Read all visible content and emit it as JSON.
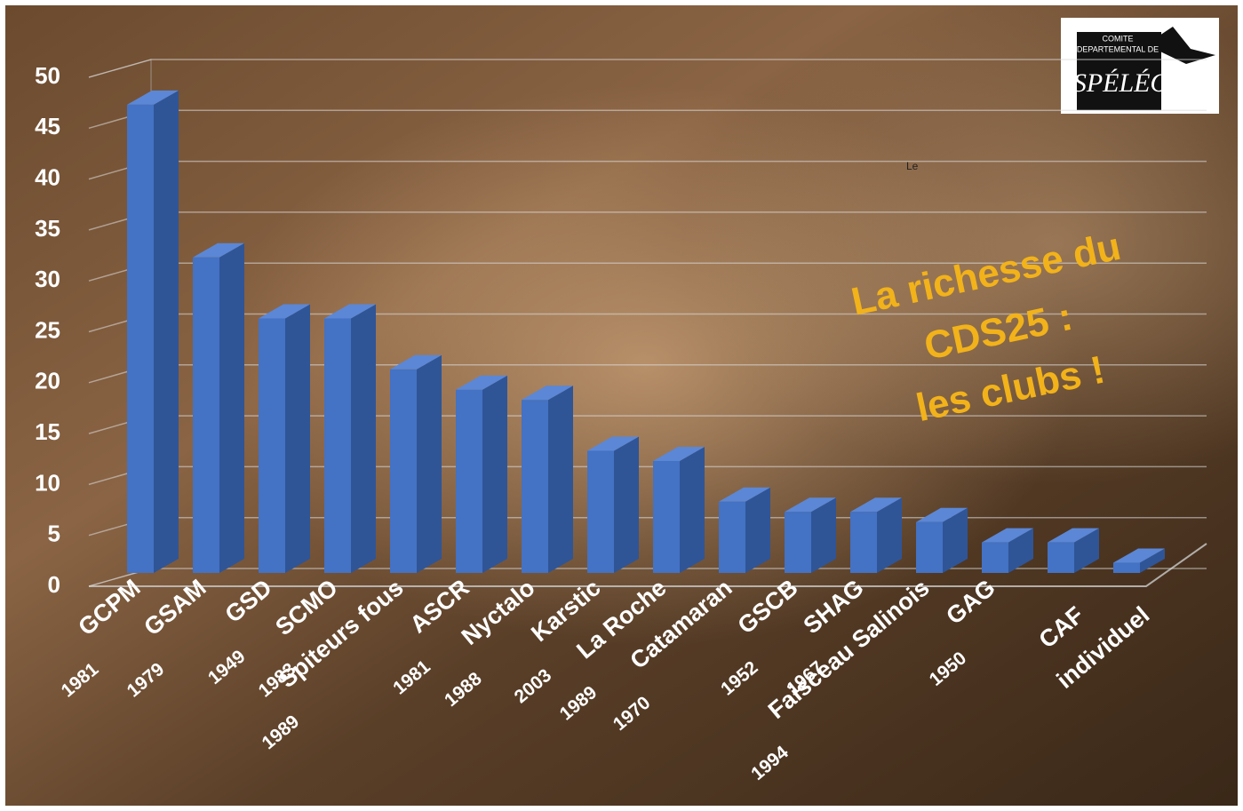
{
  "chart_data": {
    "type": "bar3d",
    "title_lines": [
      "La richesse du",
      "CDS25 :",
      "les clubs !"
    ],
    "categories": [
      "GCPM",
      "GSAM",
      "GSD",
      "SCMO",
      "Spiteurs fous",
      "ASCR",
      "Nyctalo",
      "Karstic",
      "La Roche",
      "Catamaran",
      "GSCB",
      "SHAG",
      "Faisceau Salinois",
      "GAG",
      "CAF",
      "individuel"
    ],
    "years": [
      "1981",
      "1979",
      "1949",
      "1983",
      "1989",
      "1981",
      "1988",
      "2003",
      "1989",
      "1970",
      "1952",
      "1967",
      "1994",
      "1950",
      null,
      null
    ],
    "values": [
      46,
      31,
      25,
      25,
      20,
      18,
      17,
      12,
      11,
      7,
      6,
      6,
      5,
      3,
      3,
      1
    ],
    "color": "#4472c4",
    "ylim": [
      0,
      50
    ],
    "yticks": [
      0,
      5,
      10,
      15,
      20,
      25,
      30,
      35,
      40,
      45,
      50
    ],
    "grid": true,
    "logo": [
      "COMITE",
      "DEPARTEMENTAL DE",
      "SPÉLÉO"
    ],
    "note": "Le"
  }
}
